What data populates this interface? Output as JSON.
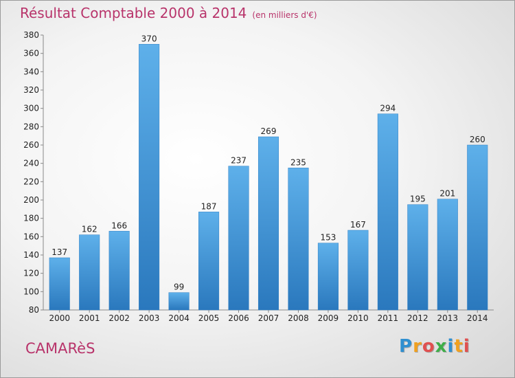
{
  "header": {
    "title": "Résultat Comptable 2000 à 2014",
    "subtitle": "(en milliers d'€)"
  },
  "footer": {
    "commune": "CAMARèS",
    "logo_letters": [
      {
        "ch": "P",
        "color": "#2f8fd0"
      },
      {
        "ch": "r",
        "color": "#f0a020"
      },
      {
        "ch": "o",
        "color": "#e05050"
      },
      {
        "ch": "x",
        "color": "#3fae49"
      },
      {
        "ch": "i",
        "color": "#2f8fd0"
      },
      {
        "ch": "t",
        "color": "#f0a020"
      },
      {
        "ch": "i",
        "color": "#e05050"
      }
    ]
  },
  "chart_data": {
    "type": "bar",
    "categories": [
      "2000",
      "2001",
      "2002",
      "2003",
      "2004",
      "2005",
      "2006",
      "2007",
      "2008",
      "2009",
      "2010",
      "2011",
      "2012",
      "2013",
      "2014"
    ],
    "values": [
      137,
      162,
      166,
      370,
      99,
      187,
      237,
      269,
      235,
      153,
      167,
      294,
      195,
      201,
      260
    ],
    "title": "Résultat Comptable 2000 à 2014",
    "subtitle": "(en milliers d'€)",
    "xlabel": "",
    "ylabel": "",
    "ylim": [
      80,
      380
    ],
    "yticks": [
      80,
      100,
      120,
      140,
      160,
      180,
      200,
      220,
      240,
      260,
      280,
      300,
      320,
      340,
      360,
      380
    ],
    "grid": false,
    "legend": "none",
    "bar_color": "#3d8fd6",
    "data_labels": true
  }
}
